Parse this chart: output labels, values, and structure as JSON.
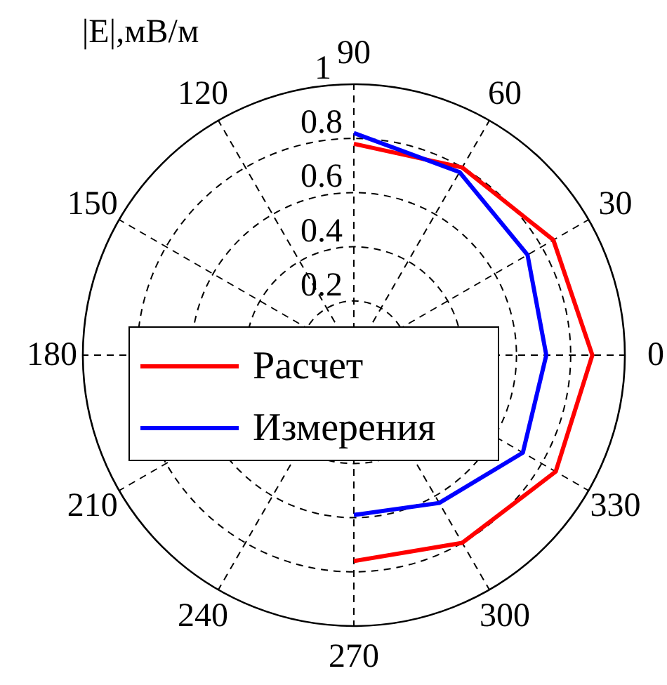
{
  "chart_data": {
    "type": "radar",
    "title": "|E|,мВ/м",
    "categories": [
      "90",
      "60",
      "30",
      "0",
      "330",
      "300",
      "270",
      "240",
      "210",
      "180",
      "150",
      "120"
    ],
    "series": [
      {
        "name": "Расчет",
        "color": "#ff0000",
        "values": [
          0.78,
          0.8,
          0.85,
          0.88,
          0.86,
          0.8,
          0.76,
          null,
          null,
          null,
          null,
          null
        ]
      },
      {
        "name": "Измерения",
        "color": "#0000ff",
        "values": [
          0.82,
          0.78,
          0.74,
          0.71,
          0.72,
          0.63,
          0.59,
          null,
          null,
          null,
          null,
          null
        ]
      }
    ],
    "ylim": [
      0,
      1
    ],
    "yticks": [
      0.2,
      0.4,
      0.6,
      0.8,
      1
    ],
    "grid": true,
    "legend": "center",
    "marker": "none",
    "line_style": "solid"
  }
}
